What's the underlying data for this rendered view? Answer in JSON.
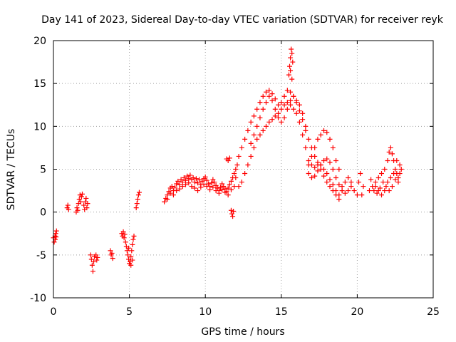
{
  "chart_data": {
    "type": "scatter",
    "title": "Day 141 of 2023, Sidereal Day-to-day VTEC variation (SDTVAR) for receiver reyk",
    "xlabel": "GPS time / hours",
    "ylabel": "SDTVAR / TECUs",
    "xlim": [
      0,
      25
    ],
    "ylim": [
      -10,
      20
    ],
    "xticks": [
      0,
      5,
      10,
      15,
      20,
      25
    ],
    "yticks": [
      -10,
      -5,
      0,
      5,
      10,
      15,
      20
    ],
    "xtick_labels": [
      "0",
      "5",
      "10",
      "15",
      "20",
      "25"
    ],
    "ytick_labels": [
      "-10",
      "-5",
      "0",
      "5",
      "10",
      "15",
      "20"
    ],
    "grid": true,
    "marker": "+",
    "color": "#ff0000",
    "series": [
      {
        "name": "SDTVAR",
        "points": [
          [
            0.0,
            -3.0
          ],
          [
            0.05,
            -3.5
          ],
          [
            0.1,
            -2.8
          ],
          [
            0.12,
            -3.2
          ],
          [
            0.15,
            -2.5
          ],
          [
            0.18,
            -2.9
          ],
          [
            0.2,
            -2.2
          ],
          [
            0.9,
            0.5
          ],
          [
            0.95,
            0.8
          ],
          [
            1.0,
            0.3
          ],
          [
            1.5,
            0.0
          ],
          [
            1.55,
            0.5
          ],
          [
            1.6,
            0.2
          ],
          [
            1.65,
            1.0
          ],
          [
            1.7,
            1.5
          ],
          [
            1.75,
            2.0
          ],
          [
            1.8,
            1.2
          ],
          [
            1.85,
            1.8
          ],
          [
            1.9,
            2.1
          ],
          [
            2.0,
            0.8
          ],
          [
            2.05,
            0.3
          ],
          [
            2.1,
            1.2
          ],
          [
            2.15,
            1.6
          ],
          [
            2.2,
            0.5
          ],
          [
            2.25,
            1.0
          ],
          [
            2.45,
            -5.0
          ],
          [
            2.5,
            -5.5
          ],
          [
            2.55,
            -6.2
          ],
          [
            2.6,
            -6.9
          ],
          [
            2.65,
            -5.8
          ],
          [
            2.7,
            -5.2
          ],
          [
            2.8,
            -5.0
          ],
          [
            2.85,
            -5.6
          ],
          [
            2.9,
            -5.3
          ],
          [
            3.75,
            -4.5
          ],
          [
            3.8,
            -5.0
          ],
          [
            3.85,
            -4.8
          ],
          [
            3.9,
            -5.4
          ],
          [
            4.5,
            -2.5
          ],
          [
            4.55,
            -2.8
          ],
          [
            4.6,
            -2.3
          ],
          [
            4.65,
            -3.0
          ],
          [
            4.7,
            -2.6
          ],
          [
            4.75,
            -3.5
          ],
          [
            4.8,
            -4.0
          ],
          [
            4.85,
            -4.5
          ],
          [
            4.9,
            -5.0
          ],
          [
            4.95,
            -5.5
          ],
          [
            5.0,
            -6.0
          ],
          [
            5.05,
            -5.8
          ],
          [
            5.1,
            -5.2
          ],
          [
            5.15,
            -4.5
          ],
          [
            5.2,
            -3.8
          ],
          [
            5.25,
            -3.2
          ],
          [
            5.3,
            -2.8
          ],
          [
            5.1,
            -6.2
          ],
          [
            5.2,
            -5.6
          ],
          [
            4.95,
            -4.2
          ],
          [
            5.45,
            0.5
          ],
          [
            5.5,
            1.0
          ],
          [
            5.55,
            1.5
          ],
          [
            5.6,
            2.0
          ],
          [
            5.65,
            2.3
          ],
          [
            7.3,
            1.2
          ],
          [
            7.4,
            1.6
          ],
          [
            7.5,
            2.0
          ],
          [
            7.6,
            2.4
          ],
          [
            7.7,
            2.8
          ],
          [
            7.8,
            3.0
          ],
          [
            7.9,
            2.5
          ],
          [
            8.0,
            2.9
          ],
          [
            8.1,
            3.3
          ],
          [
            8.2,
            3.6
          ],
          [
            8.3,
            3.2
          ],
          [
            8.4,
            3.8
          ],
          [
            8.5,
            3.5
          ],
          [
            8.6,
            4.0
          ],
          [
            8.7,
            3.7
          ],
          [
            8.8,
            4.2
          ],
          [
            8.9,
            3.9
          ],
          [
            9.0,
            4.3
          ],
          [
            9.1,
            3.8
          ],
          [
            9.2,
            4.0
          ],
          [
            9.3,
            3.5
          ],
          [
            9.4,
            3.9
          ],
          [
            9.5,
            3.4
          ],
          [
            9.6,
            3.8
          ],
          [
            9.7,
            3.2
          ],
          [
            9.8,
            3.6
          ],
          [
            9.9,
            3.9
          ],
          [
            10.0,
            4.1
          ],
          [
            10.1,
            3.7
          ],
          [
            10.2,
            3.3
          ],
          [
            10.3,
            3.0
          ],
          [
            10.4,
            3.4
          ],
          [
            10.5,
            3.8
          ],
          [
            10.6,
            3.5
          ],
          [
            10.7,
            3.1
          ],
          [
            10.8,
            2.8
          ],
          [
            10.9,
            2.5
          ],
          [
            11.0,
            2.9
          ],
          [
            11.1,
            3.3
          ],
          [
            11.2,
            3.0
          ],
          [
            11.3,
            2.7
          ],
          [
            11.4,
            2.4
          ],
          [
            11.5,
            2.8
          ],
          [
            11.6,
            3.2
          ],
          [
            11.7,
            3.6
          ],
          [
            11.8,
            4.0
          ],
          [
            11.9,
            4.5
          ],
          [
            12.0,
            5.0
          ],
          [
            12.1,
            5.5
          ],
          [
            7.5,
            1.5
          ],
          [
            7.7,
            2.2
          ],
          [
            7.9,
            2.0
          ],
          [
            8.1,
            2.5
          ],
          [
            8.3,
            2.7
          ],
          [
            8.5,
            3.0
          ],
          [
            8.7,
            3.2
          ],
          [
            8.9,
            3.4
          ],
          [
            9.1,
            3.0
          ],
          [
            9.3,
            2.8
          ],
          [
            9.5,
            2.5
          ],
          [
            9.7,
            2.9
          ],
          [
            9.9,
            3.2
          ],
          [
            10.1,
            3.0
          ],
          [
            10.3,
            2.6
          ],
          [
            10.5,
            2.9
          ],
          [
            10.7,
            2.5
          ],
          [
            10.9,
            2.2
          ],
          [
            11.1,
            2.6
          ],
          [
            11.3,
            2.3
          ],
          [
            11.5,
            2.0
          ],
          [
            11.7,
            2.6
          ],
          [
            11.9,
            3.0
          ],
          [
            11.4,
            6.2
          ],
          [
            11.5,
            6.0
          ],
          [
            11.6,
            6.3
          ],
          [
            11.7,
            0.2
          ],
          [
            11.75,
            -0.2
          ],
          [
            11.8,
            -0.5
          ],
          [
            11.85,
            0.1
          ],
          [
            12.0,
            4.0
          ],
          [
            12.2,
            6.5
          ],
          [
            12.4,
            7.5
          ],
          [
            12.6,
            8.5
          ],
          [
            12.8,
            9.5
          ],
          [
            13.0,
            10.5
          ],
          [
            13.2,
            11.2
          ],
          [
            13.4,
            12.0
          ],
          [
            13.6,
            12.8
          ],
          [
            13.8,
            13.5
          ],
          [
            14.0,
            14.0
          ],
          [
            14.2,
            14.2
          ],
          [
            14.4,
            13.8
          ],
          [
            14.6,
            13.2
          ],
          [
            14.8,
            12.5
          ],
          [
            15.0,
            12.8
          ],
          [
            15.2,
            13.5
          ],
          [
            15.4,
            14.2
          ],
          [
            15.6,
            14.0
          ],
          [
            15.8,
            13.5
          ],
          [
            16.0,
            12.8
          ],
          [
            16.2,
            11.8
          ],
          [
            16.4,
            10.8
          ],
          [
            16.6,
            9.5
          ],
          [
            16.8,
            8.5
          ],
          [
            17.0,
            7.5
          ],
          [
            17.2,
            6.5
          ],
          [
            17.4,
            5.8
          ],
          [
            17.6,
            5.5
          ],
          [
            17.8,
            5.0
          ],
          [
            18.0,
            4.5
          ],
          [
            18.2,
            3.8
          ],
          [
            18.4,
            3.2
          ],
          [
            18.6,
            2.5
          ],
          [
            18.8,
            2.0
          ],
          [
            19.0,
            2.5
          ],
          [
            19.2,
            3.5
          ],
          [
            19.4,
            4.0
          ],
          [
            19.6,
            3.5
          ],
          [
            12.2,
            3.0
          ],
          [
            12.4,
            3.5
          ],
          [
            12.6,
            4.5
          ],
          [
            12.8,
            5.5
          ],
          [
            13.0,
            6.5
          ],
          [
            13.2,
            7.5
          ],
          [
            13.4,
            8.5
          ],
          [
            13.6,
            9.0
          ],
          [
            13.8,
            9.5
          ],
          [
            14.0,
            10.0
          ],
          [
            14.2,
            10.5
          ],
          [
            14.4,
            10.8
          ],
          [
            14.6,
            11.2
          ],
          [
            14.8,
            11.5
          ],
          [
            15.0,
            12.0
          ],
          [
            15.2,
            12.5
          ],
          [
            15.4,
            12.8
          ],
          [
            15.6,
            12.5
          ],
          [
            15.8,
            12.0
          ],
          [
            16.0,
            11.5
          ],
          [
            16.2,
            10.5
          ],
          [
            16.4,
            9.0
          ],
          [
            16.6,
            7.5
          ],
          [
            16.8,
            6.0
          ],
          [
            17.0,
            5.5
          ],
          [
            17.2,
            5.2
          ],
          [
            17.4,
            5.5
          ],
          [
            17.6,
            5.0
          ],
          [
            17.8,
            4.2
          ],
          [
            18.0,
            3.5
          ],
          [
            18.2,
            3.0
          ],
          [
            18.4,
            2.5
          ],
          [
            18.6,
            2.0
          ],
          [
            18.8,
            1.5
          ],
          [
            13.0,
            8.0
          ],
          [
            13.2,
            9.0
          ],
          [
            13.4,
            10.0
          ],
          [
            13.6,
            11.0
          ],
          [
            13.8,
            12.0
          ],
          [
            14.0,
            12.8
          ],
          [
            14.2,
            13.5
          ],
          [
            14.4,
            13.0
          ],
          [
            14.6,
            12.0
          ],
          [
            14.8,
            11.0
          ],
          [
            15.0,
            10.5
          ],
          [
            15.2,
            11.0
          ],
          [
            15.4,
            12.0
          ],
          [
            15.6,
            13.0
          ],
          [
            15.8,
            13.5
          ],
          [
            16.0,
            13.0
          ],
          [
            16.2,
            12.5
          ],
          [
            16.4,
            11.5
          ],
          [
            16.6,
            10.0
          ],
          [
            15.5,
            16.0
          ],
          [
            15.55,
            17.0
          ],
          [
            15.6,
            18.0
          ],
          [
            15.65,
            19.0
          ],
          [
            15.7,
            18.5
          ],
          [
            15.75,
            17.5
          ],
          [
            15.6,
            16.5
          ],
          [
            15.7,
            15.5
          ],
          [
            16.8,
            5.5
          ],
          [
            17.0,
            6.5
          ],
          [
            17.2,
            7.5
          ],
          [
            17.4,
            8.5
          ],
          [
            17.6,
            9.0
          ],
          [
            17.8,
            9.5
          ],
          [
            18.0,
            9.3
          ],
          [
            18.2,
            8.5
          ],
          [
            18.4,
            7.5
          ],
          [
            18.6,
            6.0
          ],
          [
            18.8,
            5.0
          ],
          [
            16.8,
            4.5
          ],
          [
            17.0,
            4.0
          ],
          [
            17.2,
            4.2
          ],
          [
            17.4,
            4.8
          ],
          [
            17.6,
            5.5
          ],
          [
            17.8,
            6.0
          ],
          [
            18.0,
            6.2
          ],
          [
            18.2,
            5.8
          ],
          [
            18.4,
            5.0
          ],
          [
            18.6,
            4.0
          ],
          [
            18.8,
            3.2
          ],
          [
            19.0,
            2.5
          ],
          [
            19.0,
            3.0
          ],
          [
            19.2,
            2.2
          ],
          [
            19.4,
            2.5
          ],
          [
            19.6,
            3.0
          ],
          [
            19.8,
            2.5
          ],
          [
            20.0,
            2.0
          ],
          [
            20.1,
            3.5
          ],
          [
            20.2,
            4.5
          ],
          [
            20.4,
            3.0
          ],
          [
            20.3,
            2.0
          ],
          [
            20.8,
            2.5
          ],
          [
            21.0,
            3.0
          ],
          [
            21.2,
            3.5
          ],
          [
            21.4,
            4.0
          ],
          [
            21.6,
            4.5
          ],
          [
            21.8,
            5.0
          ],
          [
            22.0,
            6.0
          ],
          [
            22.1,
            7.0
          ],
          [
            22.2,
            7.5
          ],
          [
            22.3,
            6.8
          ],
          [
            22.4,
            6.0
          ],
          [
            22.5,
            5.0
          ],
          [
            22.6,
            4.5
          ],
          [
            22.7,
            4.0
          ],
          [
            22.8,
            4.5
          ],
          [
            22.9,
            5.0
          ],
          [
            20.9,
            3.8
          ],
          [
            21.1,
            2.5
          ],
          [
            21.3,
            2.2
          ],
          [
            21.5,
            2.8
          ],
          [
            21.7,
            3.5
          ],
          [
            21.9,
            3.0
          ],
          [
            22.1,
            2.5
          ],
          [
            22.3,
            3.0
          ],
          [
            22.5,
            3.8
          ],
          [
            22.7,
            3.5
          ],
          [
            22.8,
            5.5
          ],
          [
            22.6,
            6.0
          ],
          [
            22.4,
            4.5
          ],
          [
            22.2,
            4.0
          ],
          [
            22.0,
            3.5
          ],
          [
            21.8,
            2.5
          ],
          [
            21.6,
            2.0
          ],
          [
            21.4,
            2.5
          ],
          [
            21.2,
            3.0
          ]
        ]
      }
    ]
  }
}
